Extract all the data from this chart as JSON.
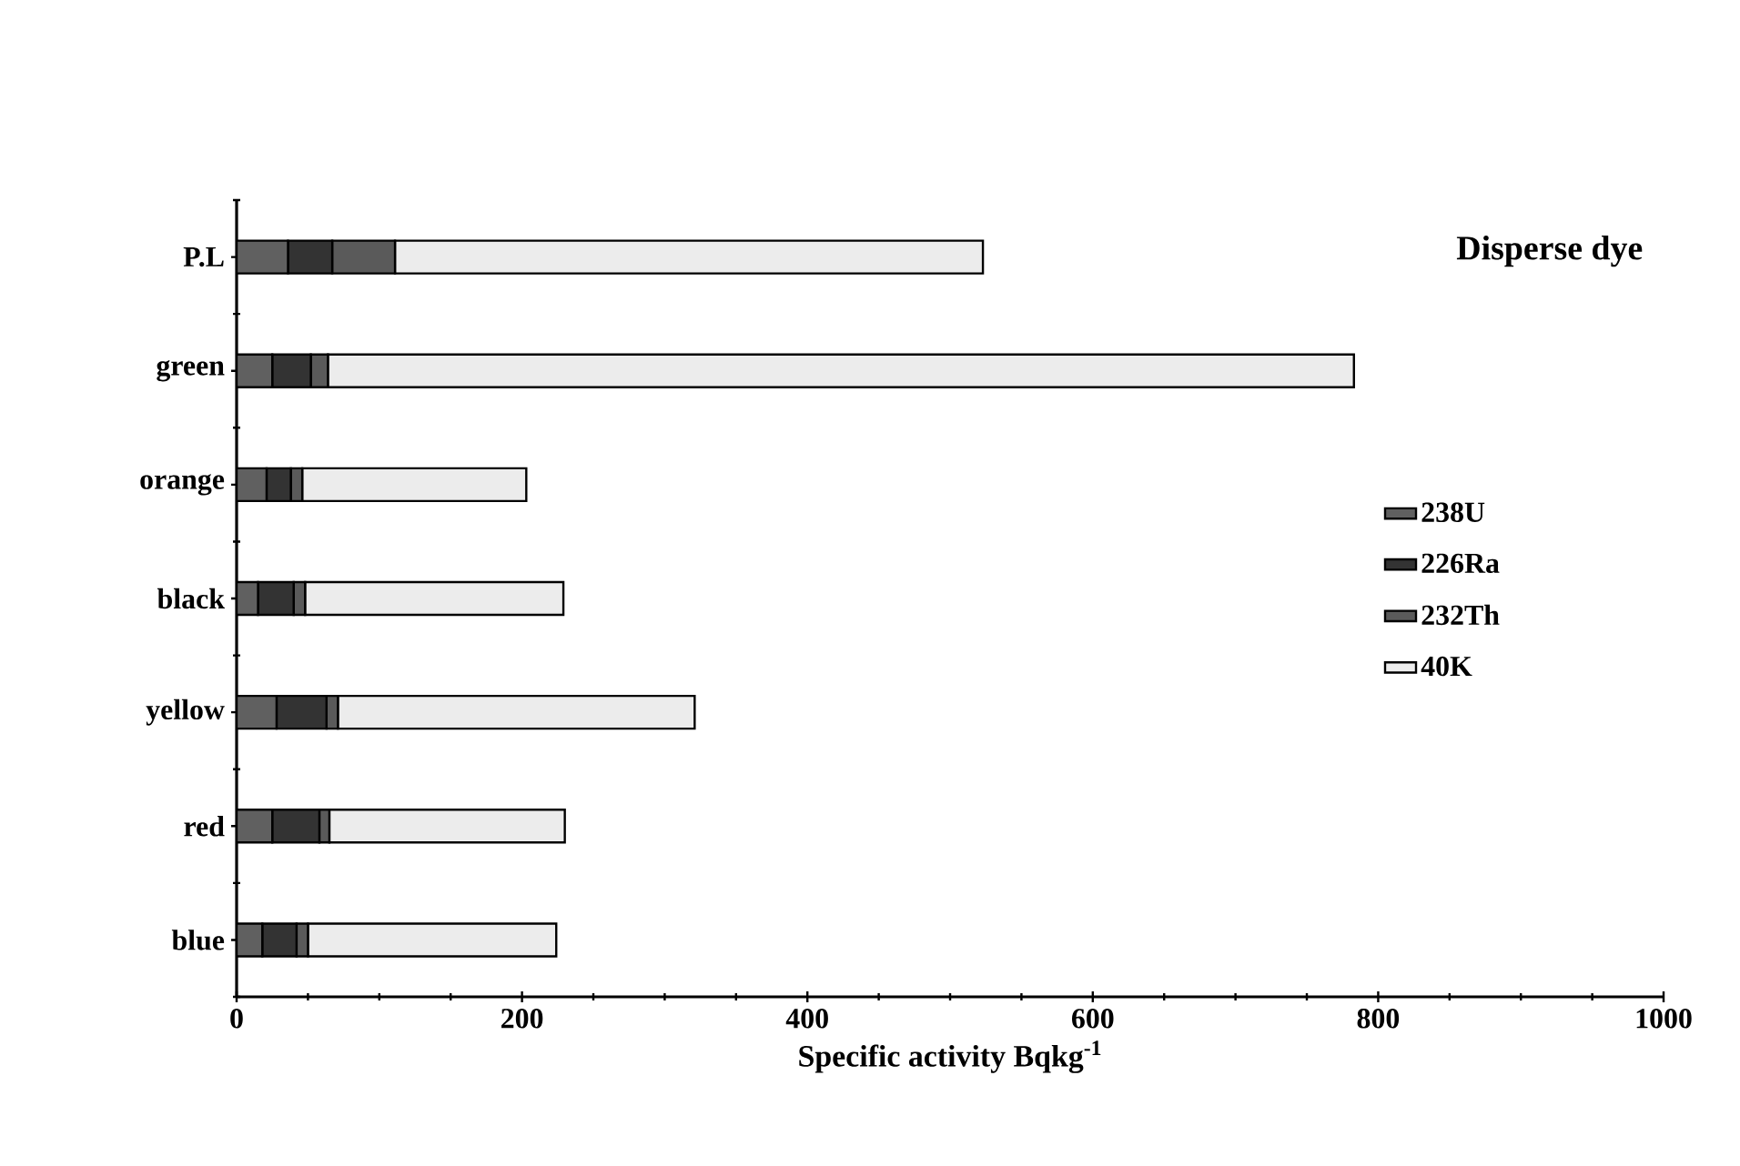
{
  "chart_data": {
    "type": "bar",
    "orientation": "horizontal",
    "stacked": true,
    "title": "Disperse dye",
    "xlabel": "Specific activity Bqkg$^{-1}$",
    "categories": [
      "P.L",
      "green",
      "orange",
      "black",
      "yellow",
      "red",
      "blue"
    ],
    "series": [
      {
        "name": "238U",
        "color": "#606060",
        "values": [
          36,
          25,
          21,
          15,
          28,
          25,
          18
        ]
      },
      {
        "name": "226Ra",
        "color": "#333333",
        "values": [
          31,
          27,
          17,
          25,
          35,
          33,
          24
        ]
      },
      {
        "name": "232Th",
        "color": "#5a5a5a",
        "values": [
          44,
          12,
          8,
          8,
          8,
          7,
          8
        ]
      },
      {
        "name": "40K",
        "color": "#ececec",
        "values": [
          412,
          719,
          157,
          181,
          250,
          165,
          174
        ]
      }
    ],
    "xlim": [
      0,
      1000
    ],
    "xticks": [
      0,
      200,
      400,
      600,
      800,
      1000
    ],
    "legend": "right"
  }
}
